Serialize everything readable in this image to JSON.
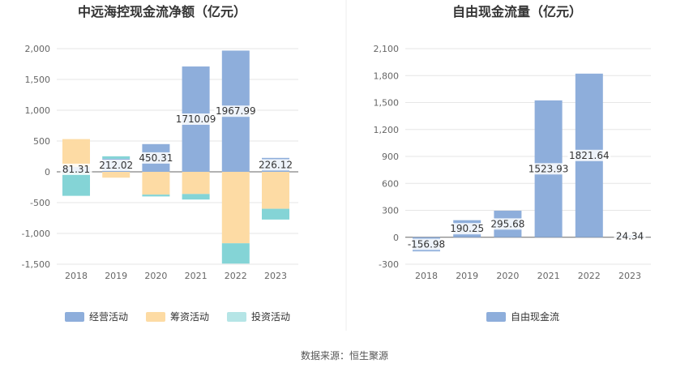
{
  "source": "数据来源：恒生聚源",
  "chart_data": [
    {
      "type": "bar",
      "title": "中远海控现金流净额（亿元）",
      "stacked": true,
      "categories": [
        "2018",
        "2019",
        "2020",
        "2021",
        "2022",
        "2023"
      ],
      "ylim": [
        -1500,
        2000
      ],
      "yticks": [
        2000,
        1500,
        1000,
        500,
        0,
        -500,
        -1000,
        -1500
      ],
      "ytick_labels": [
        "2,000",
        "1,500",
        "1,000",
        "500",
        "0",
        "-500",
        "-1,000",
        "-1,500"
      ],
      "grid": true,
      "legend_position": "bottom",
      "series": [
        {
          "name": "经营活动",
          "color": "#8eaedb",
          "values": [
            81.31,
            212.02,
            450.31,
            1710.09,
            1967.99,
            226.12
          ]
        },
        {
          "name": "筹资活动",
          "color": "#fddba4",
          "values": [
            450,
            -95,
            -370,
            -360,
            -1160,
            -600
          ]
        },
        {
          "name": "投资活动",
          "color": "#84d4d6",
          "values": [
            -390,
            40,
            -30,
            -90,
            -330,
            -175
          ]
        }
      ],
      "data_labels": [
        "81.31",
        "212.02",
        "450.31",
        "1710.09",
        "1967.99",
        "226.12"
      ]
    },
    {
      "type": "bar",
      "title": "自由现金流量（亿元）",
      "categories": [
        "2018",
        "2019",
        "2020",
        "2021",
        "2022",
        "2023"
      ],
      "ylim": [
        -300,
        2100
      ],
      "yticks": [
        2100,
        1800,
        1500,
        1200,
        900,
        600,
        300,
        0,
        -300
      ],
      "ytick_labels": [
        "2,100",
        "1,800",
        "1,500",
        "1,200",
        "900",
        "600",
        "300",
        "0",
        "-300"
      ],
      "grid": true,
      "legend_position": "bottom",
      "series": [
        {
          "name": "自由现金流",
          "color": "#8eaedb",
          "values": [
            -156.98,
            190.25,
            295.68,
            1523.93,
            1821.64,
            24.34
          ]
        }
      ],
      "data_labels": [
        "-156.98",
        "190.25",
        "295.68",
        "1523.93",
        "1821.64",
        "24.34"
      ]
    }
  ]
}
